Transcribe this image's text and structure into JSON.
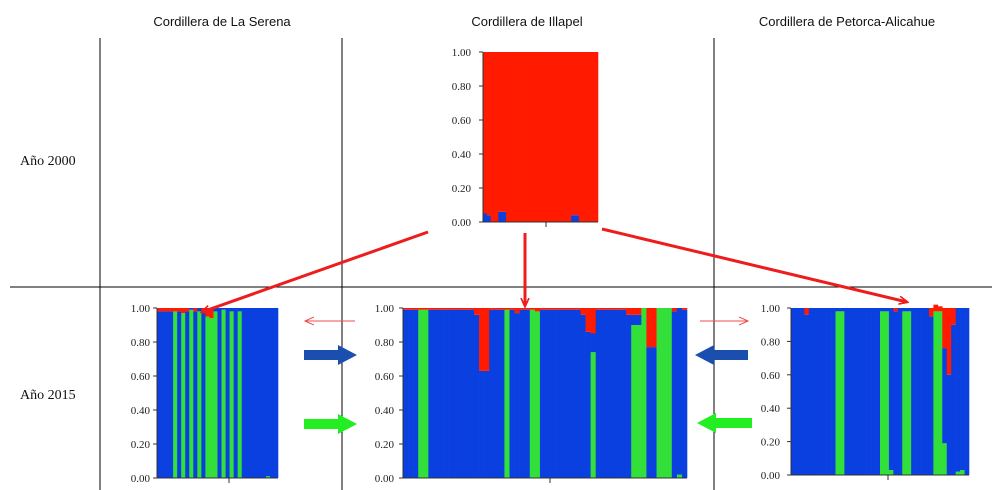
{
  "columns": [
    "Cordillera de La Serena",
    "Cordillera de Illapel",
    "Cordillera de Petorca-Alicahue"
  ],
  "rows": [
    "Año 2000",
    "Año 2015"
  ],
  "colors": {
    "red": "#ff1a00",
    "blue": "#0a3fe0",
    "green": "#33e03a",
    "arrow_red": "#ee1c1c",
    "arrow_blue": "#1a4fb0",
    "arrow_green": "#22ee22"
  },
  "chart_data": [
    {
      "type": "bar",
      "stacked": true,
      "panel": "Cordillera de Illapel, Año 2000",
      "ylim": [
        0,
        1
      ],
      "yticks": [
        "1.00",
        "0.80",
        "0.60",
        "0.40",
        "0.20",
        "0.00"
      ],
      "xticks": [
        ""
      ],
      "n_individuals": 30,
      "series_order": [
        "blue",
        "green",
        "red"
      ],
      "bars": [
        {
          "blue": 0.05
        },
        {
          "blue": 0.04
        },
        {
          "blue": 0.0
        },
        {
          "blue": 0.0
        },
        {
          "blue": 0.06
        },
        {
          "blue": 0.06
        },
        {
          "blue": 0.0
        },
        {
          "blue": 0.0
        },
        {
          "blue": 0.0
        },
        {
          "blue": 0.0
        },
        {
          "blue": 0.0
        },
        {
          "blue": 0.0
        },
        {
          "blue": 0.0
        },
        {
          "blue": 0.0
        },
        {
          "blue": 0.0
        },
        {
          "blue": 0.0
        },
        {
          "blue": 0.0
        },
        {
          "blue": 0.0
        },
        {
          "blue": 0.0
        },
        {
          "blue": 0.0
        },
        {
          "blue": 0.0
        },
        {
          "blue": 0.0
        },
        {
          "blue": 0.0
        },
        {
          "blue": 0.04
        },
        {
          "blue": 0.04
        },
        {
          "blue": 0.0
        },
        {
          "blue": 0.0
        },
        {
          "blue": 0.0
        },
        {
          "blue": 0.0
        },
        {
          "blue": 0.0
        }
      ]
    },
    {
      "type": "bar",
      "stacked": true,
      "panel": "Cordillera de La Serena, Año 2015",
      "ylim": [
        0,
        1
      ],
      "yticks": [
        "1.00",
        "0.80",
        "0.60",
        "0.40",
        "0.20",
        "0.00"
      ],
      "xticks": [
        ""
      ],
      "n_individuals": 30,
      "series_order": [
        "blue",
        "green",
        "red"
      ],
      "bars": [
        {
          "red": 0.02
        },
        {
          "red": 0.02
        },
        {
          "red": 0.02
        },
        {
          "red": 0.02
        },
        {
          "green": 0.98,
          "red": 0.02
        },
        {
          "red": 0.02
        },
        {
          "green": 0.97,
          "red": 0.03
        },
        {
          "red": 0.02
        },
        {
          "green": 0.99
        },
        {
          "red": 0.02
        },
        {
          "green": 0.98
        },
        {
          "red": 0.02
        },
        {
          "green": 0.95,
          "red": 0.05
        },
        {
          "green": 0.94,
          "red": 0.06
        },
        {
          "green": 0.98
        },
        {
          "red": 0.0
        },
        {
          "green": 0.99
        },
        {
          "red": 0.0
        },
        {
          "green": 0.98
        },
        {
          "red": 0.0
        },
        {
          "green": 0.98
        },
        {},
        {},
        {},
        {},
        {},
        {},
        {
          "green": 0.01
        },
        {},
        {}
      ]
    },
    {
      "type": "bar",
      "stacked": true,
      "panel": "Cordillera de Illapel, Año 2015",
      "ylim": [
        0,
        1
      ],
      "yticks": [
        "1.00",
        "0.80",
        "0.60",
        "0.40",
        "0.20",
        "0.00"
      ],
      "xticks": [
        ""
      ],
      "n_individuals": 56,
      "series_order": [
        "blue",
        "green",
        "red"
      ],
      "bars": [
        {
          "red": 0.01
        },
        {
          "red": 0.01
        },
        {
          "red": 0.01
        },
        {
          "green": 0.99,
          "red": 0.01
        },
        {
          "green": 0.99,
          "red": 0.01
        },
        {
          "red": 0.01
        },
        {
          "red": 0.01
        },
        {
          "red": 0.01
        },
        {
          "red": 0.01
        },
        {
          "red": 0.01
        },
        {
          "red": 0.01
        },
        {
          "red": 0.01
        },
        {
          "red": 0.01
        },
        {
          "red": 0.01
        },
        {
          "red": 0.04
        },
        {
          "red": 0.37
        },
        {
          "red": 0.37
        },
        {
          "red": 0.01
        },
        {
          "red": 0.01
        },
        {
          "red": 0.01
        },
        {
          "green": 0.99,
          "red": 0.01
        },
        {
          "red": 0.01
        },
        {
          "red": 0.03
        },
        {
          "red": 0.01
        },
        {
          "red": 0.01
        },
        {
          "green": 0.99,
          "red": 0.01
        },
        {
          "green": 0.98,
          "red": 0.02
        },
        {
          "red": 0.01
        },
        {
          "red": 0.01
        },
        {
          "red": 0.01
        },
        {
          "red": 0.01
        },
        {
          "red": 0.01
        },
        {
          "red": 0.01
        },
        {
          "red": 0.01
        },
        {
          "red": 0.01
        },
        {
          "red": 0.04
        },
        {
          "red": 0.14
        },
        {
          "green": 0.74,
          "red": 0.15
        },
        {
          "red": 0.01
        },
        {
          "red": 0.01
        },
        {
          "red": 0.01
        },
        {
          "red": 0.01
        },
        {
          "red": 0.01
        },
        {
          "red": 0.01
        },
        {
          "red": 0.04
        },
        {
          "green": 0.9,
          "red": 0.04
        },
        {
          "green": 0.9,
          "red": 0.04
        },
        {
          "green": 1.0
        },
        {
          "red": 0.23
        },
        {
          "red": 0.23
        },
        {
          "green": 1.0
        },
        {
          "green": 1.0
        },
        {
          "green": 1.0
        },
        {
          "red": 0.02
        },
        {
          "green": 0.02
        },
        {
          "red": 0.01
        }
      ]
    },
    {
      "type": "bar",
      "stacked": true,
      "panel": "Cordillera de Petorca-Alicahue, Año 2015",
      "ylim": [
        0,
        1
      ],
      "yticks": [
        "1.00",
        "0.80",
        "0.60",
        "0.40",
        "0.20",
        "0.00"
      ],
      "xticks": [
        ""
      ],
      "n_individuals": 40,
      "series_order": [
        "blue",
        "green",
        "red"
      ],
      "bars": [
        {},
        {},
        {},
        {
          "red": 0.04
        },
        {},
        {},
        {},
        {},
        {},
        {},
        {
          "green": 0.98
        },
        {
          "green": 0.98
        },
        {},
        {},
        {},
        {},
        {},
        {},
        {},
        {},
        {
          "green": 0.98
        },
        {
          "green": 0.98
        },
        {
          "green": 0.03
        },
        {
          "red": 0.02
        },
        {},
        {
          "green": 0.98
        },
        {
          "green": 0.98
        },
        {},
        {},
        {},
        {},
        {
          "red": 0.05
        },
        {
          "green": 0.98,
          "red": 0.04
        },
        {
          "green": 0.98,
          "red": 0.03
        },
        {
          "green": 0.19,
          "red": 0.24
        },
        {
          "red": 0.4
        },
        {
          "red": 0.1
        },
        {
          "green": 0.02
        },
        {
          "green": 0.03
        },
        {}
      ]
    }
  ]
}
